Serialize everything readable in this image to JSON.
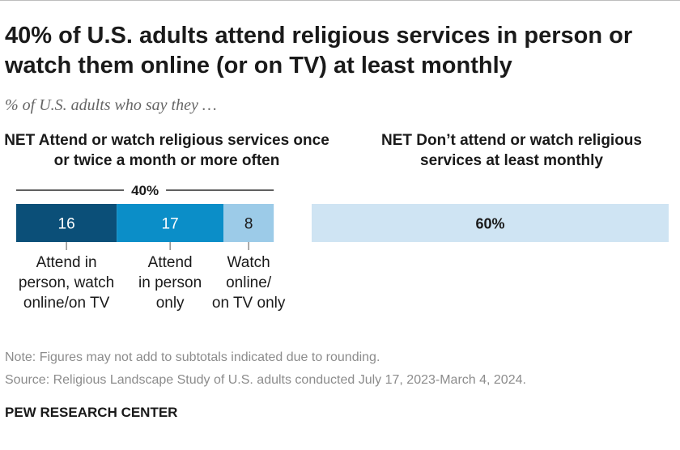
{
  "title": "40% of U.S. adults attend religious services in person or watch them online (or on TV) at least monthly",
  "subtitle": "% of U.S. adults who say they …",
  "headers": {
    "left": "NET Attend or watch religious services once or twice a month or more often",
    "right": "NET Don’t attend or watch religious services at least monthly"
  },
  "chart_data": {
    "type": "bar",
    "orientation": "horizontal-stacked",
    "title": "40% of U.S. adults attend religious services in person or watch them online (or on TV) at least monthly",
    "subtitle": "% of U.S. adults who say they …",
    "segments": [
      {
        "name": "Attend in person, watch online/on TV",
        "label_lines": [
          "Attend in",
          "person, watch",
          "online/on TV"
        ],
        "value": 16,
        "label": "16",
        "color": "#0b4f78",
        "text_color": "#ffffff"
      },
      {
        "name": "Attend in person only",
        "label_lines": [
          "Attend",
          "in person",
          "only"
        ],
        "value": 17,
        "label": "17",
        "color": "#0b8ec8",
        "text_color": "#ffffff"
      },
      {
        "name": "Watch online/ on TV only",
        "label_lines": [
          "Watch",
          "online/",
          "on TV only"
        ],
        "value": 8,
        "label": "8",
        "color": "#9ccbe8",
        "text_color": "#1a1a1a"
      }
    ],
    "net_attend": {
      "value": 40,
      "label": "40%"
    },
    "net_dont": {
      "value": 60,
      "label": "60%",
      "color": "#cfe4f3",
      "text_color": "#1a1a1a"
    },
    "colors": {
      "bracket": "#000000",
      "tick": "#555555"
    }
  },
  "notes": {
    "note": "Note: Figures may not add to subtotals indicated due to rounding.",
    "source": "Source: Religious Landscape Study of U.S. adults conducted July 17, 2023-March 4, 2024."
  },
  "brand": "PEW RESEARCH CENTER"
}
